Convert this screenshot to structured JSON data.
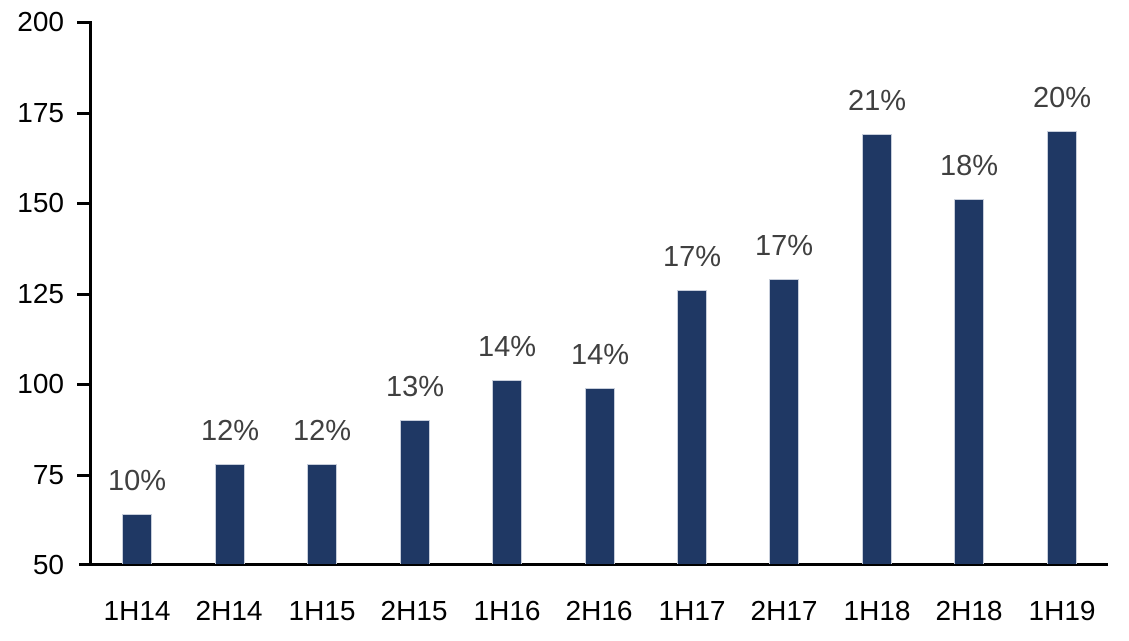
{
  "chart_data": {
    "type": "bar",
    "categories": [
      "1H14",
      "2H14",
      "1H15",
      "2H15",
      "1H16",
      "2H16",
      "1H17",
      "2H17",
      "1H18",
      "2H18",
      "1H19"
    ],
    "values": [
      64,
      78,
      78,
      90,
      101,
      99,
      126,
      129,
      169,
      151,
      170
    ],
    "data_labels": [
      "10%",
      "12%",
      "12%",
      "13%",
      "14%",
      "14%",
      "17%",
      "17%",
      "21%",
      "18%",
      "20%"
    ],
    "title": "",
    "xlabel": "",
    "ylabel": "",
    "ylim": [
      50,
      200
    ],
    "y_ticks": [
      50,
      75,
      100,
      125,
      150,
      175,
      200
    ],
    "grid": false,
    "legend": "none",
    "colors": {
      "bar_fill": "#1F3864",
      "bar_border": "#C7CEDB",
      "data_label": "#404040",
      "axis_label": "#000000",
      "axis_line": "#000000"
    }
  }
}
